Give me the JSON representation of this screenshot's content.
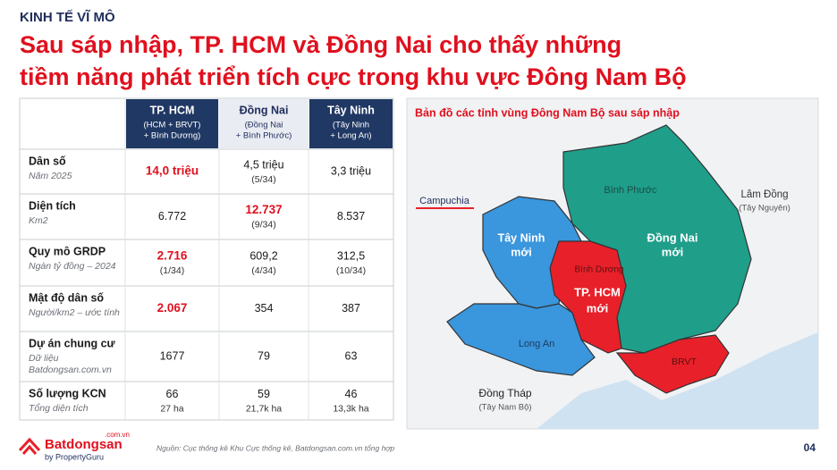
{
  "header": {
    "kicker": "KINH TẾ VĨ MÔ",
    "title_lines": [
      "Sau sáp nhập, TP. HCM và Đồng Nai cho thấy những",
      "tiềm năng phát triển tích cực trong khu vực Đông Nam Bộ"
    ]
  },
  "table": {
    "columns": [
      {
        "name": "TP. HCM",
        "sub": [
          "(HCM + BRVT)",
          "+ Bình Dương)"
        ],
        "dark": true
      },
      {
        "name": "Đồng Nai",
        "sub": [
          "(Đồng Nai",
          "+ Bình Phước)"
        ],
        "dark": false
      },
      {
        "name": "Tây Ninh",
        "sub": [
          "(Tây Ninh",
          "+ Long An)"
        ],
        "dark": true
      }
    ],
    "rows": [
      {
        "label": "Dân số",
        "sub": [
          "Năm 2025"
        ],
        "cells": [
          {
            "main": "14,0 triệu",
            "emphasis": true
          },
          {
            "main": "4,5 triệu",
            "sub": "(5/34)"
          },
          {
            "main": "3,3 triệu"
          }
        ]
      },
      {
        "label": "Diện tích",
        "sub": [
          "Km2"
        ],
        "cells": [
          {
            "main": "6.772"
          },
          {
            "main": "12.737",
            "sub": "(9/34)",
            "emphasis": true
          },
          {
            "main": "8.537"
          }
        ]
      },
      {
        "label": "Quy mô GRDP",
        "sub": [
          "Ngàn tỷ đồng – 2024"
        ],
        "cells": [
          {
            "main": "2.716",
            "sub": "(1/34)",
            "emphasis": true
          },
          {
            "main": "609,2",
            "sub": "(4/34)"
          },
          {
            "main": "312,5",
            "sub": "(10/34)"
          }
        ]
      },
      {
        "label": "Mật độ dân số",
        "sub": [
          "Người/km2 – ước tính"
        ],
        "cells": [
          {
            "main": "2.067",
            "emphasis": true
          },
          {
            "main": "354"
          },
          {
            "main": "387"
          }
        ]
      },
      {
        "label": "Dự án chung cư",
        "sub": [
          "Dữ liệu",
          "Batdongsan.com.vn"
        ],
        "cells": [
          {
            "main": "1677"
          },
          {
            "main": "79"
          },
          {
            "main": "63"
          }
        ]
      },
      {
        "label": "Số lượng KCN",
        "sub": [
          "Tổng diện tích"
        ],
        "cells": [
          {
            "main": "66",
            "sub": "27 ha"
          },
          {
            "main": "59",
            "sub": "21,7k ha"
          },
          {
            "main": "46",
            "sub": "13,3k ha"
          }
        ]
      }
    ]
  },
  "map": {
    "title": "Bản đồ các tỉnh vùng Đông Nam Bộ sau sáp nhập",
    "labels": {
      "cambodia": "Campuchia",
      "binh_phuoc": "Bình Phước",
      "lam_dong": [
        "Lâm Đồng",
        "(Tây Nguyên)"
      ],
      "tay_ninh": [
        "Tây Ninh",
        "mới"
      ],
      "dong_nai": [
        "Đồng Nai",
        "mới"
      ],
      "binh_duong": "Bình Dương",
      "hcm": [
        "TP. HCM",
        "mới"
      ],
      "long_an": "Long An",
      "brvt": "BRVT",
      "dong_thap": [
        "Đồng Tháp",
        "(Tây Nam Bộ)"
      ]
    }
  },
  "footer": {
    "brand": "Batdongsan",
    "brand_domain": ".com.vn",
    "brand_by": "by PropertyGuru",
    "source": "Nguồn: Cục thống kê Khu Cực thống kê, Batdongsan.com.vn tổng hợp",
    "page": "04"
  }
}
